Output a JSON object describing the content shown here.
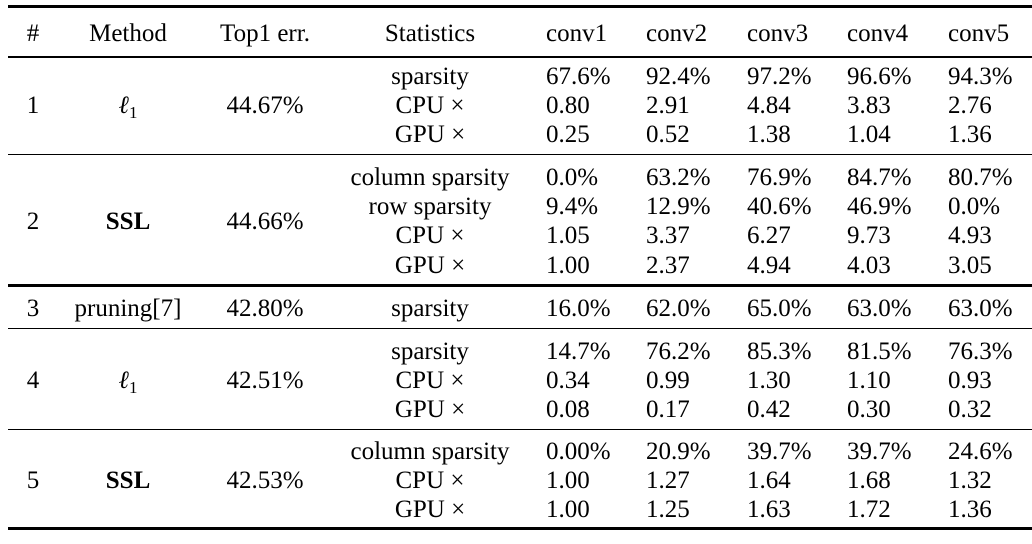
{
  "columns": [
    "#",
    "Method",
    "Top1 err.",
    "Statistics",
    "conv1",
    "conv2",
    "conv3",
    "conv4",
    "conv5"
  ],
  "rows": [
    {
      "num": "1",
      "method": {
        "base": "ℓ",
        "sub": "1"
      },
      "top1": "44.67%",
      "stats": [
        {
          "label": "sparsity",
          "values": [
            "67.6%",
            "92.4%",
            "97.2%",
            "96.6%",
            "94.3%"
          ]
        },
        {
          "label": "CPU ×",
          "values": [
            "0.80",
            "2.91",
            "4.84",
            "3.83",
            "2.76"
          ]
        },
        {
          "label": "GPU ×",
          "values": [
            "0.25",
            "0.52",
            "1.38",
            "1.04",
            "1.36"
          ]
        }
      ]
    },
    {
      "num": "2",
      "method": {
        "text": "SSL"
      },
      "top1": "44.66%",
      "stats": [
        {
          "label": "column sparsity",
          "values": [
            "0.0%",
            "63.2%",
            "76.9%",
            "84.7%",
            "80.7%"
          ]
        },
        {
          "label": "row sparsity",
          "values": [
            "9.4%",
            "12.9%",
            "40.6%",
            "46.9%",
            "0.0%"
          ]
        },
        {
          "label": "CPU ×",
          "values": [
            "1.05",
            "3.37",
            "6.27",
            "9.73",
            "4.93"
          ]
        },
        {
          "label": "GPU ×",
          "values": [
            "1.00",
            "2.37",
            "4.94",
            "4.03",
            "3.05"
          ]
        }
      ]
    },
    {
      "num": "3",
      "method": {
        "text": "pruning[7]"
      },
      "top1": "42.80%",
      "stats": [
        {
          "label": "sparsity",
          "values": [
            "16.0%",
            "62.0%",
            "65.0%",
            "63.0%",
            "63.0%"
          ]
        }
      ]
    },
    {
      "num": "4",
      "method": {
        "base": "ℓ",
        "sub": "1"
      },
      "top1": "42.51%",
      "stats": [
        {
          "label": "sparsity",
          "values": [
            "14.7%",
            "76.2%",
            "85.3%",
            "81.5%",
            "76.3%"
          ]
        },
        {
          "label": "CPU ×",
          "values": [
            "0.34",
            "0.99",
            "1.30",
            "1.10",
            "0.93"
          ]
        },
        {
          "label": "GPU ×",
          "values": [
            "0.08",
            "0.17",
            "0.42",
            "0.30",
            "0.32"
          ]
        }
      ]
    },
    {
      "num": "5",
      "method": {
        "text": "SSL"
      },
      "top1": "42.53%",
      "stats": [
        {
          "label": "column sparsity",
          "values": [
            "0.00%",
            "20.9%",
            "39.7%",
            "39.7%",
            "24.6%"
          ]
        },
        {
          "label": "CPU ×",
          "values": [
            "1.00",
            "1.27",
            "1.64",
            "1.68",
            "1.32"
          ]
        },
        {
          "label": "GPU ×",
          "values": [
            "1.00",
            "1.25",
            "1.63",
            "1.72",
            "1.36"
          ]
        }
      ]
    }
  ]
}
